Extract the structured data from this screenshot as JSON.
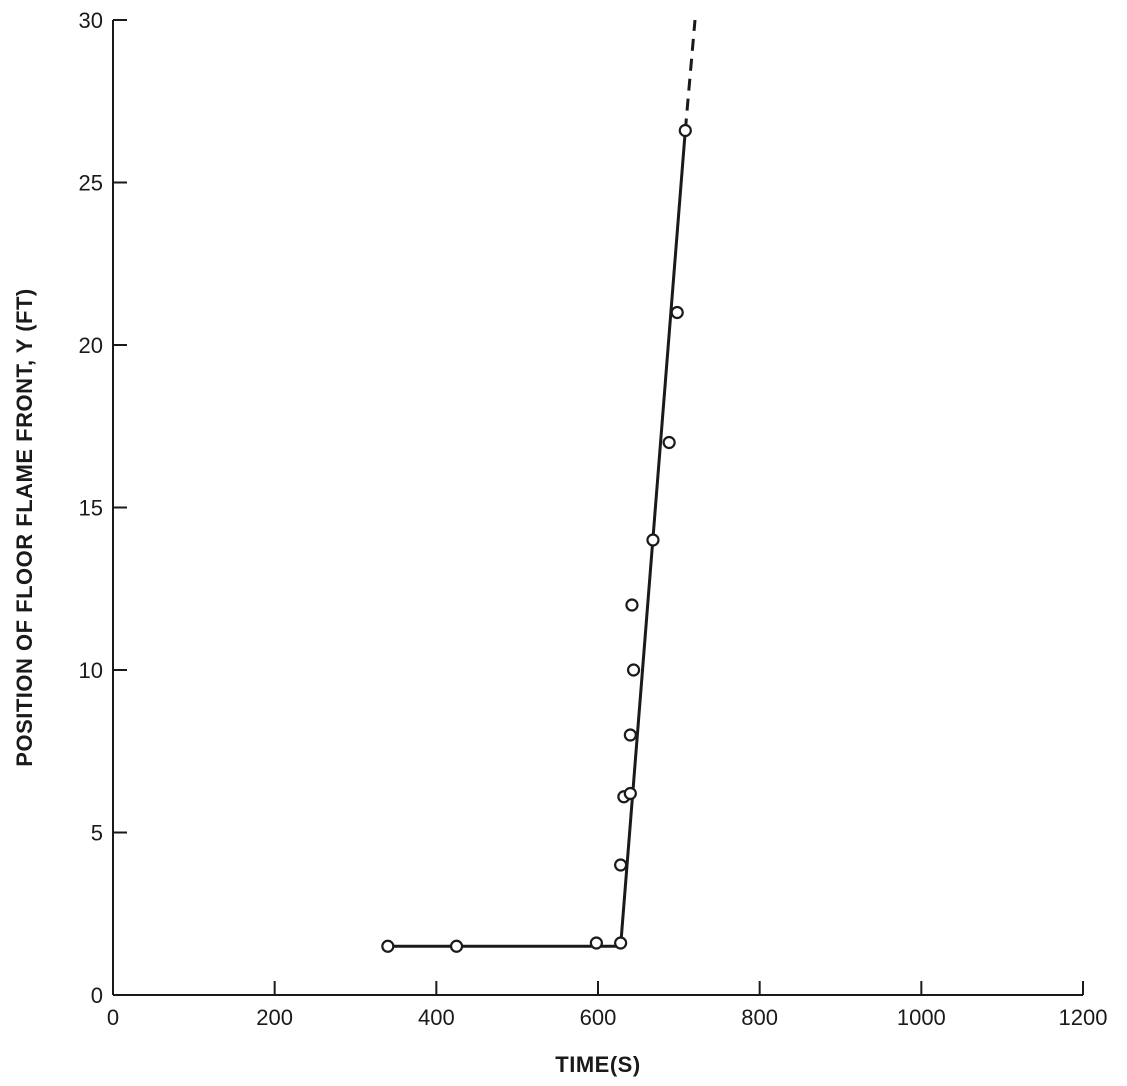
{
  "chart_data": {
    "type": "scatter",
    "title": "",
    "xlabel": "TIME(S)",
    "ylabel": "POSITION OF FLOOR FLAME FRONT, Y (FT)",
    "xlim": [
      0,
      1200
    ],
    "ylim": [
      0,
      30
    ],
    "x_ticks": [
      "0",
      "200",
      "400",
      "600",
      "800",
      "1000",
      "1200"
    ],
    "y_ticks": [
      "0",
      "5",
      "10",
      "15",
      "20",
      "25",
      "30"
    ],
    "grid": false,
    "legend": "none",
    "points": [
      {
        "x": 340,
        "y": 1.5
      },
      {
        "x": 425,
        "y": 1.5
      },
      {
        "x": 598,
        "y": 1.6
      },
      {
        "x": 628,
        "y": 1.6
      },
      {
        "x": 628,
        "y": 4.0
      },
      {
        "x": 632,
        "y": 6.1
      },
      {
        "x": 640,
        "y": 6.2
      },
      {
        "x": 640,
        "y": 8.0
      },
      {
        "x": 644,
        "y": 10.0
      },
      {
        "x": 642,
        "y": 12.0
      },
      {
        "x": 668,
        "y": 14.0
      },
      {
        "x": 688,
        "y": 17.0
      },
      {
        "x": 698,
        "y": 21.0
      },
      {
        "x": 708,
        "y": 26.6
      }
    ],
    "fit_line": {
      "solid": [
        [
          340,
          1.5
        ],
        [
          628,
          1.5
        ],
        [
          708,
          26.6
        ]
      ],
      "dashed": [
        [
          708,
          26.6
        ],
        [
          720,
          30.0
        ]
      ]
    }
  }
}
